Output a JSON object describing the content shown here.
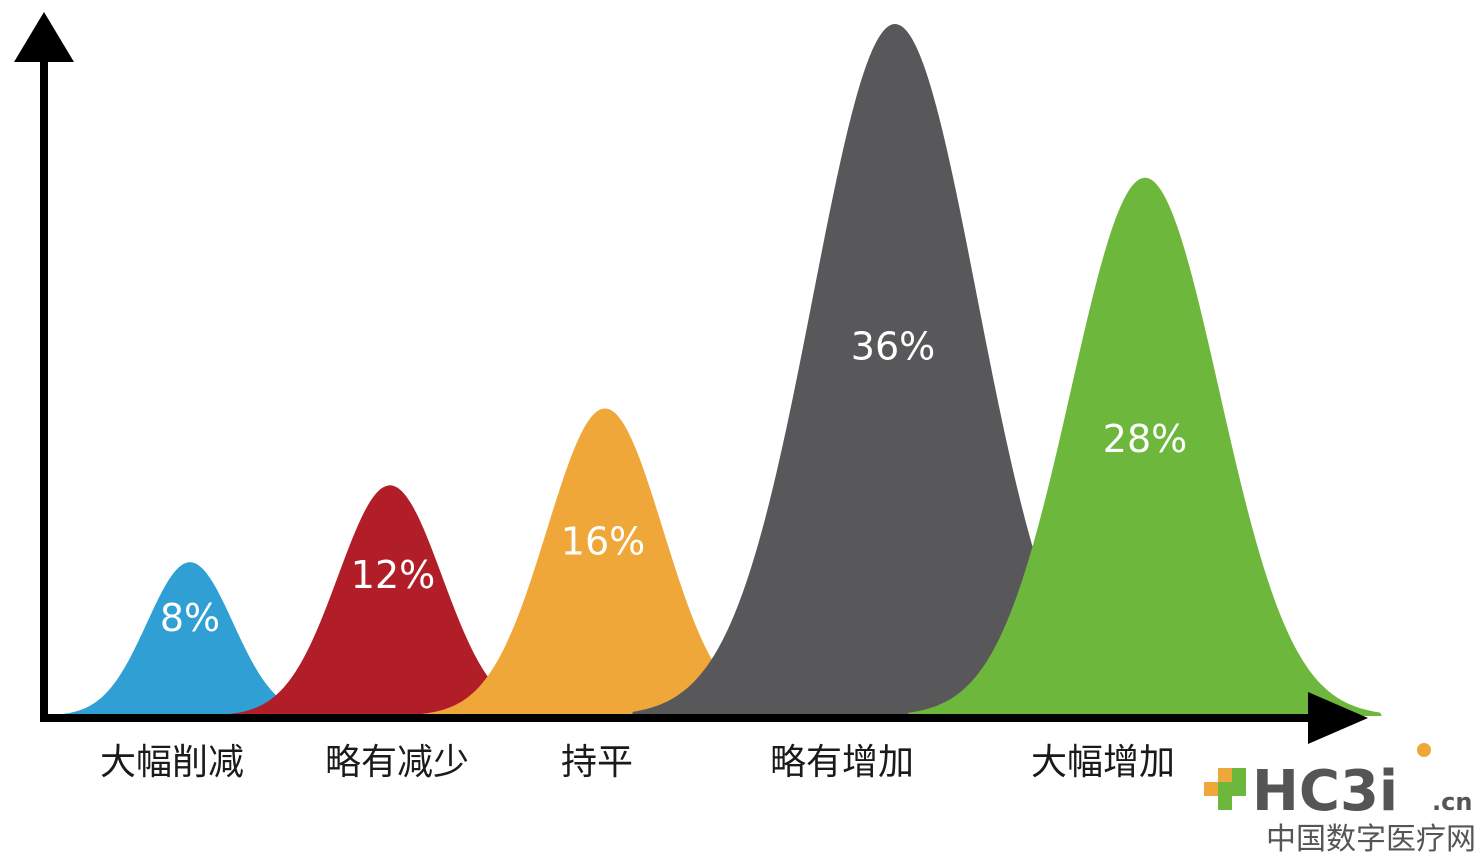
{
  "chart_data": {
    "type": "area",
    "categories": [
      "大幅削减",
      "略有减少",
      "持平",
      "略有增加",
      "大幅增加"
    ],
    "values": [
      8,
      12,
      16,
      36,
      28
    ],
    "value_labels": [
      "8%",
      "12%",
      "16%",
      "36%",
      "28%"
    ],
    "colors": [
      "#2f9fd4",
      "#b21e28",
      "#f0a73a",
      "#58585a",
      "#6db83c"
    ],
    "title": "",
    "xlabel": "",
    "ylabel": ""
  },
  "watermark": {
    "logo_text": "HC3i",
    "domain_suffix": ".cn",
    "caption": "中国数字医疗网"
  }
}
